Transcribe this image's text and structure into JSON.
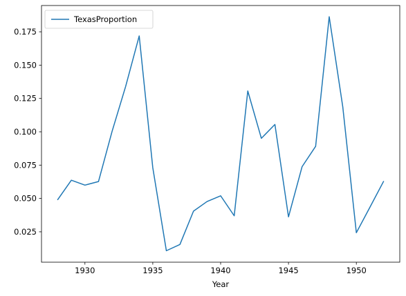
{
  "chart_data": {
    "type": "line",
    "title": "",
    "xlabel": "Year",
    "ylabel": "",
    "xlim": [
      1926.8,
      1953.2
    ],
    "ylim": [
      0.0022,
      0.1947
    ],
    "xticks": [
      1930,
      1935,
      1940,
      1945,
      1950
    ],
    "yticks": [
      0.025,
      0.05,
      0.075,
      0.1,
      0.125,
      0.15,
      0.175
    ],
    "xtick_labels": [
      "1930",
      "1935",
      "1940",
      "1945",
      "1950"
    ],
    "ytick_labels": [
      "0.025",
      "0.050",
      "0.075",
      "0.100",
      "0.125",
      "0.150",
      "0.175"
    ],
    "grid": false,
    "legend_position": "top-left",
    "series": [
      {
        "name": "TexasProportion",
        "color": "#1f77b4",
        "x": [
          1928,
          1929,
          1930,
          1931,
          1932,
          1933,
          1934,
          1935,
          1936,
          1937,
          1938,
          1939,
          1940,
          1941,
          1942,
          1943,
          1944,
          1945,
          1946,
          1947,
          1948,
          1949,
          1950,
          1951,
          1952
        ],
        "y": [
          0.0492,
          0.0637,
          0.06,
          0.0627,
          0.1003,
          0.134,
          0.1719,
          0.0731,
          0.0108,
          0.0155,
          0.0405,
          0.0477,
          0.052,
          0.037,
          0.1306,
          0.0951,
          0.1055,
          0.0362,
          0.0738,
          0.0891,
          0.1863,
          0.1187,
          0.0243,
          0.0434,
          0.0627
        ]
      }
    ]
  }
}
